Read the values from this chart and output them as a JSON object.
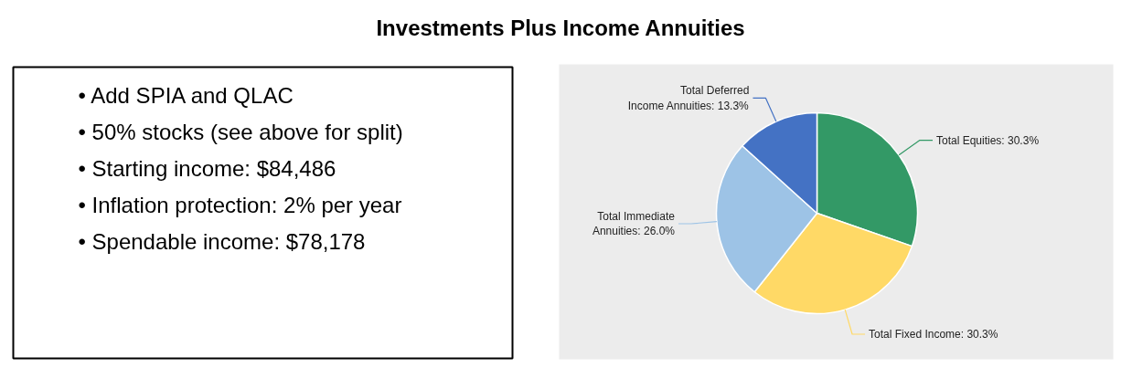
{
  "chart_data": {
    "type": "pie",
    "title": "Investments Plus Income Annuities",
    "categories": [
      "Total Equities",
      "Total Fixed Income",
      "Total Immediate Annuities",
      "Total Deferred Income Annuities"
    ],
    "values": [
      30.3,
      30.3,
      26.0,
      13.3
    ],
    "value_labels": [
      "30.3%",
      "30.3%",
      "26.0%",
      "13.3%"
    ],
    "colors": [
      "#339966",
      "#ffd966",
      "#9dc3e6",
      "#4472c4"
    ],
    "annotations": [
      "• Add SPIA and QLAC",
      "• 50% stocks (see above for split)",
      "• Starting income: $84,486",
      "• Inflation protection: 2% per year",
      "• Spendable income: $78,178"
    ]
  }
}
